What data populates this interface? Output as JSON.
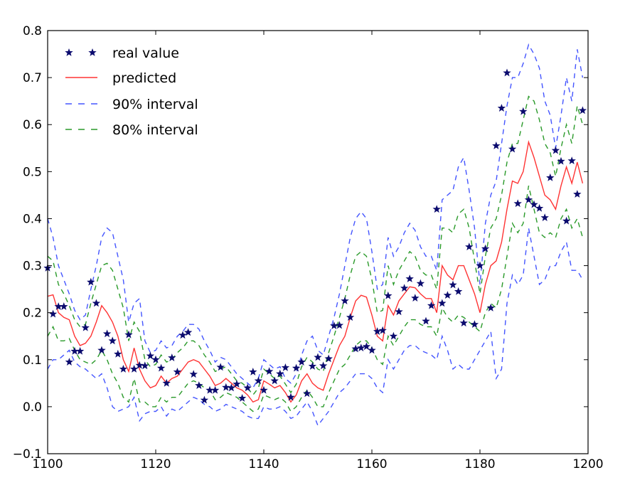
{
  "chart_data": {
    "type": "line",
    "title": "",
    "xlabel": "",
    "ylabel": "",
    "xlim": [
      1100,
      1200
    ],
    "ylim": [
      -0.1,
      0.8
    ],
    "x_ticks": [
      1100,
      1120,
      1140,
      1160,
      1180,
      1200
    ],
    "x_tick_labels": [
      "1100",
      "1120",
      "1140",
      "1160",
      "1180",
      "1200"
    ],
    "y_ticks": [
      -0.1,
      0.0,
      0.1,
      0.2,
      0.3,
      0.4,
      0.5,
      0.6,
      0.7,
      0.8
    ],
    "y_tick_labels": [
      "−0.1",
      "0.0",
      "0.1",
      "0.2",
      "0.3",
      "0.4",
      "0.5",
      "0.6",
      "0.7",
      "0.8"
    ],
    "grid": false,
    "legend_position": "top-left",
    "x": [
      1100,
      1101,
      1102,
      1103,
      1104,
      1105,
      1106,
      1107,
      1108,
      1109,
      1110,
      1111,
      1112,
      1113,
      1114,
      1115,
      1116,
      1117,
      1118,
      1119,
      1120,
      1121,
      1122,
      1123,
      1124,
      1125,
      1126,
      1127,
      1128,
      1129,
      1130,
      1131,
      1132,
      1133,
      1134,
      1135,
      1136,
      1137,
      1138,
      1139,
      1140,
      1141,
      1142,
      1143,
      1144,
      1145,
      1146,
      1147,
      1148,
      1149,
      1150,
      1151,
      1152,
      1153,
      1154,
      1155,
      1156,
      1157,
      1158,
      1159,
      1160,
      1161,
      1162,
      1163,
      1164,
      1165,
      1166,
      1167,
      1168,
      1169,
      1170,
      1171,
      1172,
      1173,
      1174,
      1175,
      1176,
      1177,
      1178,
      1179,
      1180,
      1181,
      1182,
      1183,
      1184,
      1185,
      1186,
      1187,
      1188,
      1189,
      1190,
      1191,
      1192,
      1193,
      1194,
      1195,
      1196,
      1197,
      1198,
      1199
    ],
    "series": [
      {
        "name": "real value",
        "style": "markers-star",
        "color": "#0b0b6e",
        "values": [
          0.295,
          0.197,
          0.213,
          0.213,
          0.095,
          0.118,
          0.118,
          0.168,
          0.265,
          0.22,
          0.12,
          0.155,
          0.14,
          0.112,
          0.08,
          0.153,
          0.08,
          0.088,
          0.087,
          0.108,
          0.1,
          0.082,
          0.05,
          0.104,
          0.074,
          0.152,
          0.158,
          0.069,
          0.045,
          0.014,
          0.035,
          0.035,
          0.084,
          0.041,
          0.04,
          0.048,
          0.018,
          0.04,
          0.074,
          0.055,
          0.035,
          0.075,
          0.055,
          0.07,
          0.083,
          0.02,
          0.082,
          0.095,
          0.028,
          0.086,
          0.105,
          0.087,
          0.102,
          0.172,
          0.173,
          0.225,
          0.19,
          0.123,
          0.125,
          0.128,
          0.12,
          0.16,
          0.162,
          0.236,
          0.15,
          0.202,
          0.252,
          0.272,
          0.231,
          0.262,
          0.182,
          0.215,
          0.42,
          0.22,
          0.237,
          0.259,
          0.245,
          0.178,
          0.34,
          0.175,
          0.3,
          0.336,
          0.21,
          0.555,
          0.635,
          0.71,
          0.548,
          0.432,
          0.628,
          0.44,
          0.43,
          0.422,
          0.402,
          0.487,
          0.545,
          0.522,
          0.395,
          0.523,
          0.452,
          0.63
        ]
      },
      {
        "name": "predicted",
        "style": "solid",
        "color": "#ff3333",
        "values": [
          0.235,
          0.238,
          0.2,
          0.19,
          0.185,
          0.15,
          0.13,
          0.135,
          0.15,
          0.18,
          0.215,
          0.2,
          0.18,
          0.15,
          0.1,
          0.075,
          0.125,
          0.08,
          0.055,
          0.04,
          0.045,
          0.065,
          0.05,
          0.06,
          0.065,
          0.08,
          0.095,
          0.1,
          0.095,
          0.08,
          0.065,
          0.045,
          0.05,
          0.06,
          0.05,
          0.04,
          0.035,
          0.025,
          0.01,
          0.015,
          0.055,
          0.048,
          0.04,
          0.045,
          0.03,
          0.01,
          0.025,
          0.055,
          0.07,
          0.05,
          0.04,
          0.035,
          0.07,
          0.1,
          0.13,
          0.15,
          0.19,
          0.225,
          0.237,
          0.233,
          0.195,
          0.15,
          0.14,
          0.215,
          0.195,
          0.225,
          0.24,
          0.255,
          0.253,
          0.24,
          0.23,
          0.23,
          0.2,
          0.3,
          0.28,
          0.27,
          0.3,
          0.3,
          0.27,
          0.24,
          0.2,
          0.26,
          0.3,
          0.31,
          0.35,
          0.42,
          0.48,
          0.475,
          0.5,
          0.563,
          0.53,
          0.49,
          0.45,
          0.44,
          0.42,
          0.47,
          0.51,
          0.475,
          0.52,
          0.475
        ]
      },
      {
        "name": "90% interval",
        "style": "dashed",
        "color": "#4455ff",
        "upper": [
          0.4,
          0.36,
          0.3,
          0.27,
          0.24,
          0.205,
          0.185,
          0.195,
          0.25,
          0.3,
          0.36,
          0.38,
          0.37,
          0.32,
          0.27,
          0.18,
          0.22,
          0.23,
          0.14,
          0.115,
          0.12,
          0.14,
          0.125,
          0.13,
          0.15,
          0.16,
          0.175,
          0.175,
          0.165,
          0.14,
          0.12,
          0.095,
          0.105,
          0.1,
          0.085,
          0.07,
          0.06,
          0.05,
          0.04,
          0.06,
          0.1,
          0.09,
          0.08,
          0.085,
          0.06,
          0.05,
          0.07,
          0.11,
          0.14,
          0.15,
          0.12,
          0.11,
          0.15,
          0.19,
          0.24,
          0.3,
          0.36,
          0.4,
          0.415,
          0.4,
          0.33,
          0.25,
          0.26,
          0.36,
          0.32,
          0.34,
          0.37,
          0.39,
          0.375,
          0.34,
          0.32,
          0.32,
          0.29,
          0.44,
          0.45,
          0.46,
          0.51,
          0.53,
          0.46,
          0.38,
          0.26,
          0.39,
          0.45,
          0.48,
          0.56,
          0.64,
          0.7,
          0.7,
          0.73,
          0.77,
          0.75,
          0.72,
          0.65,
          0.62,
          0.55,
          0.62,
          0.7,
          0.65,
          0.76,
          0.7
        ],
        "lower": [
          0.08,
          0.1,
          0.1,
          0.11,
          0.12,
          0.095,
          0.085,
          0.08,
          0.07,
          0.06,
          0.07,
          0.04,
          0.0,
          -0.01,
          -0.005,
          0.0,
          0.02,
          -0.03,
          -0.015,
          -0.01,
          -0.01,
          0.0,
          -0.02,
          -0.005,
          -0.01,
          0.0,
          0.01,
          0.02,
          0.015,
          0.005,
          0.0,
          -0.01,
          -0.005,
          0.005,
          0.0,
          -0.005,
          -0.01,
          -0.02,
          -0.025,
          -0.025,
          0.0,
          -0.005,
          -0.005,
          0.0,
          -0.01,
          -0.025,
          -0.02,
          -0.005,
          0.01,
          -0.01,
          -0.04,
          -0.025,
          -0.01,
          0.01,
          0.03,
          0.04,
          0.055,
          0.07,
          0.07,
          0.07,
          0.06,
          0.04,
          0.03,
          0.1,
          0.08,
          0.1,
          0.12,
          0.13,
          0.13,
          0.12,
          0.115,
          0.11,
          0.1,
          0.15,
          0.12,
          0.08,
          0.09,
          0.08,
          0.08,
          0.1,
          0.12,
          0.14,
          0.16,
          0.06,
          0.08,
          0.22,
          0.28,
          0.26,
          0.28,
          0.38,
          0.32,
          0.26,
          0.27,
          0.3,
          0.3,
          0.33,
          0.35,
          0.29,
          0.29,
          0.27
        ]
      },
      {
        "name": "80% interval",
        "style": "dashed",
        "color": "#2a9a2a",
        "upper": [
          0.32,
          0.31,
          0.26,
          0.24,
          0.215,
          0.185,
          0.17,
          0.175,
          0.22,
          0.26,
          0.3,
          0.305,
          0.29,
          0.25,
          0.21,
          0.14,
          0.18,
          0.16,
          0.1,
          0.085,
          0.09,
          0.11,
          0.095,
          0.1,
          0.115,
          0.125,
          0.14,
          0.14,
          0.13,
          0.11,
          0.095,
          0.075,
          0.08,
          0.085,
          0.07,
          0.055,
          0.05,
          0.04,
          0.025,
          0.04,
          0.08,
          0.07,
          0.06,
          0.065,
          0.048,
          0.03,
          0.048,
          0.085,
          0.105,
          0.095,
          0.08,
          0.075,
          0.115,
          0.15,
          0.19,
          0.23,
          0.28,
          0.32,
          0.33,
          0.32,
          0.27,
          0.2,
          0.205,
          0.3,
          0.26,
          0.29,
          0.31,
          0.33,
          0.32,
          0.29,
          0.28,
          0.28,
          0.25,
          0.38,
          0.38,
          0.37,
          0.41,
          0.42,
          0.38,
          0.31,
          0.24,
          0.32,
          0.38,
          0.4,
          0.45,
          0.52,
          0.56,
          0.56,
          0.61,
          0.66,
          0.65,
          0.61,
          0.56,
          0.54,
          0.49,
          0.55,
          0.6,
          0.56,
          0.64,
          0.6
        ],
        "lower": [
          0.15,
          0.17,
          0.14,
          0.14,
          0.145,
          0.12,
          0.1,
          0.095,
          0.09,
          0.1,
          0.12,
          0.1,
          0.07,
          0.05,
          0.02,
          0.01,
          0.06,
          0.01,
          0.01,
          0.0,
          0.0,
          0.02,
          0.01,
          0.02,
          0.02,
          0.035,
          0.05,
          0.055,
          0.05,
          0.04,
          0.035,
          0.015,
          0.02,
          0.03,
          0.025,
          0.02,
          0.01,
          0.0,
          -0.01,
          -0.005,
          0.025,
          0.02,
          0.015,
          0.02,
          0.01,
          -0.01,
          0.0,
          0.02,
          0.035,
          0.02,
          0.0,
          0.0,
          0.03,
          0.055,
          0.08,
          0.09,
          0.11,
          0.13,
          0.14,
          0.14,
          0.125,
          0.1,
          0.09,
          0.15,
          0.13,
          0.15,
          0.17,
          0.185,
          0.185,
          0.175,
          0.17,
          0.17,
          0.15,
          0.21,
          0.19,
          0.18,
          0.195,
          0.19,
          0.18,
          0.17,
          0.16,
          0.2,
          0.22,
          0.21,
          0.25,
          0.32,
          0.39,
          0.37,
          0.39,
          0.47,
          0.42,
          0.37,
          0.36,
          0.37,
          0.36,
          0.4,
          0.42,
          0.38,
          0.4,
          0.36
        ]
      }
    ]
  }
}
